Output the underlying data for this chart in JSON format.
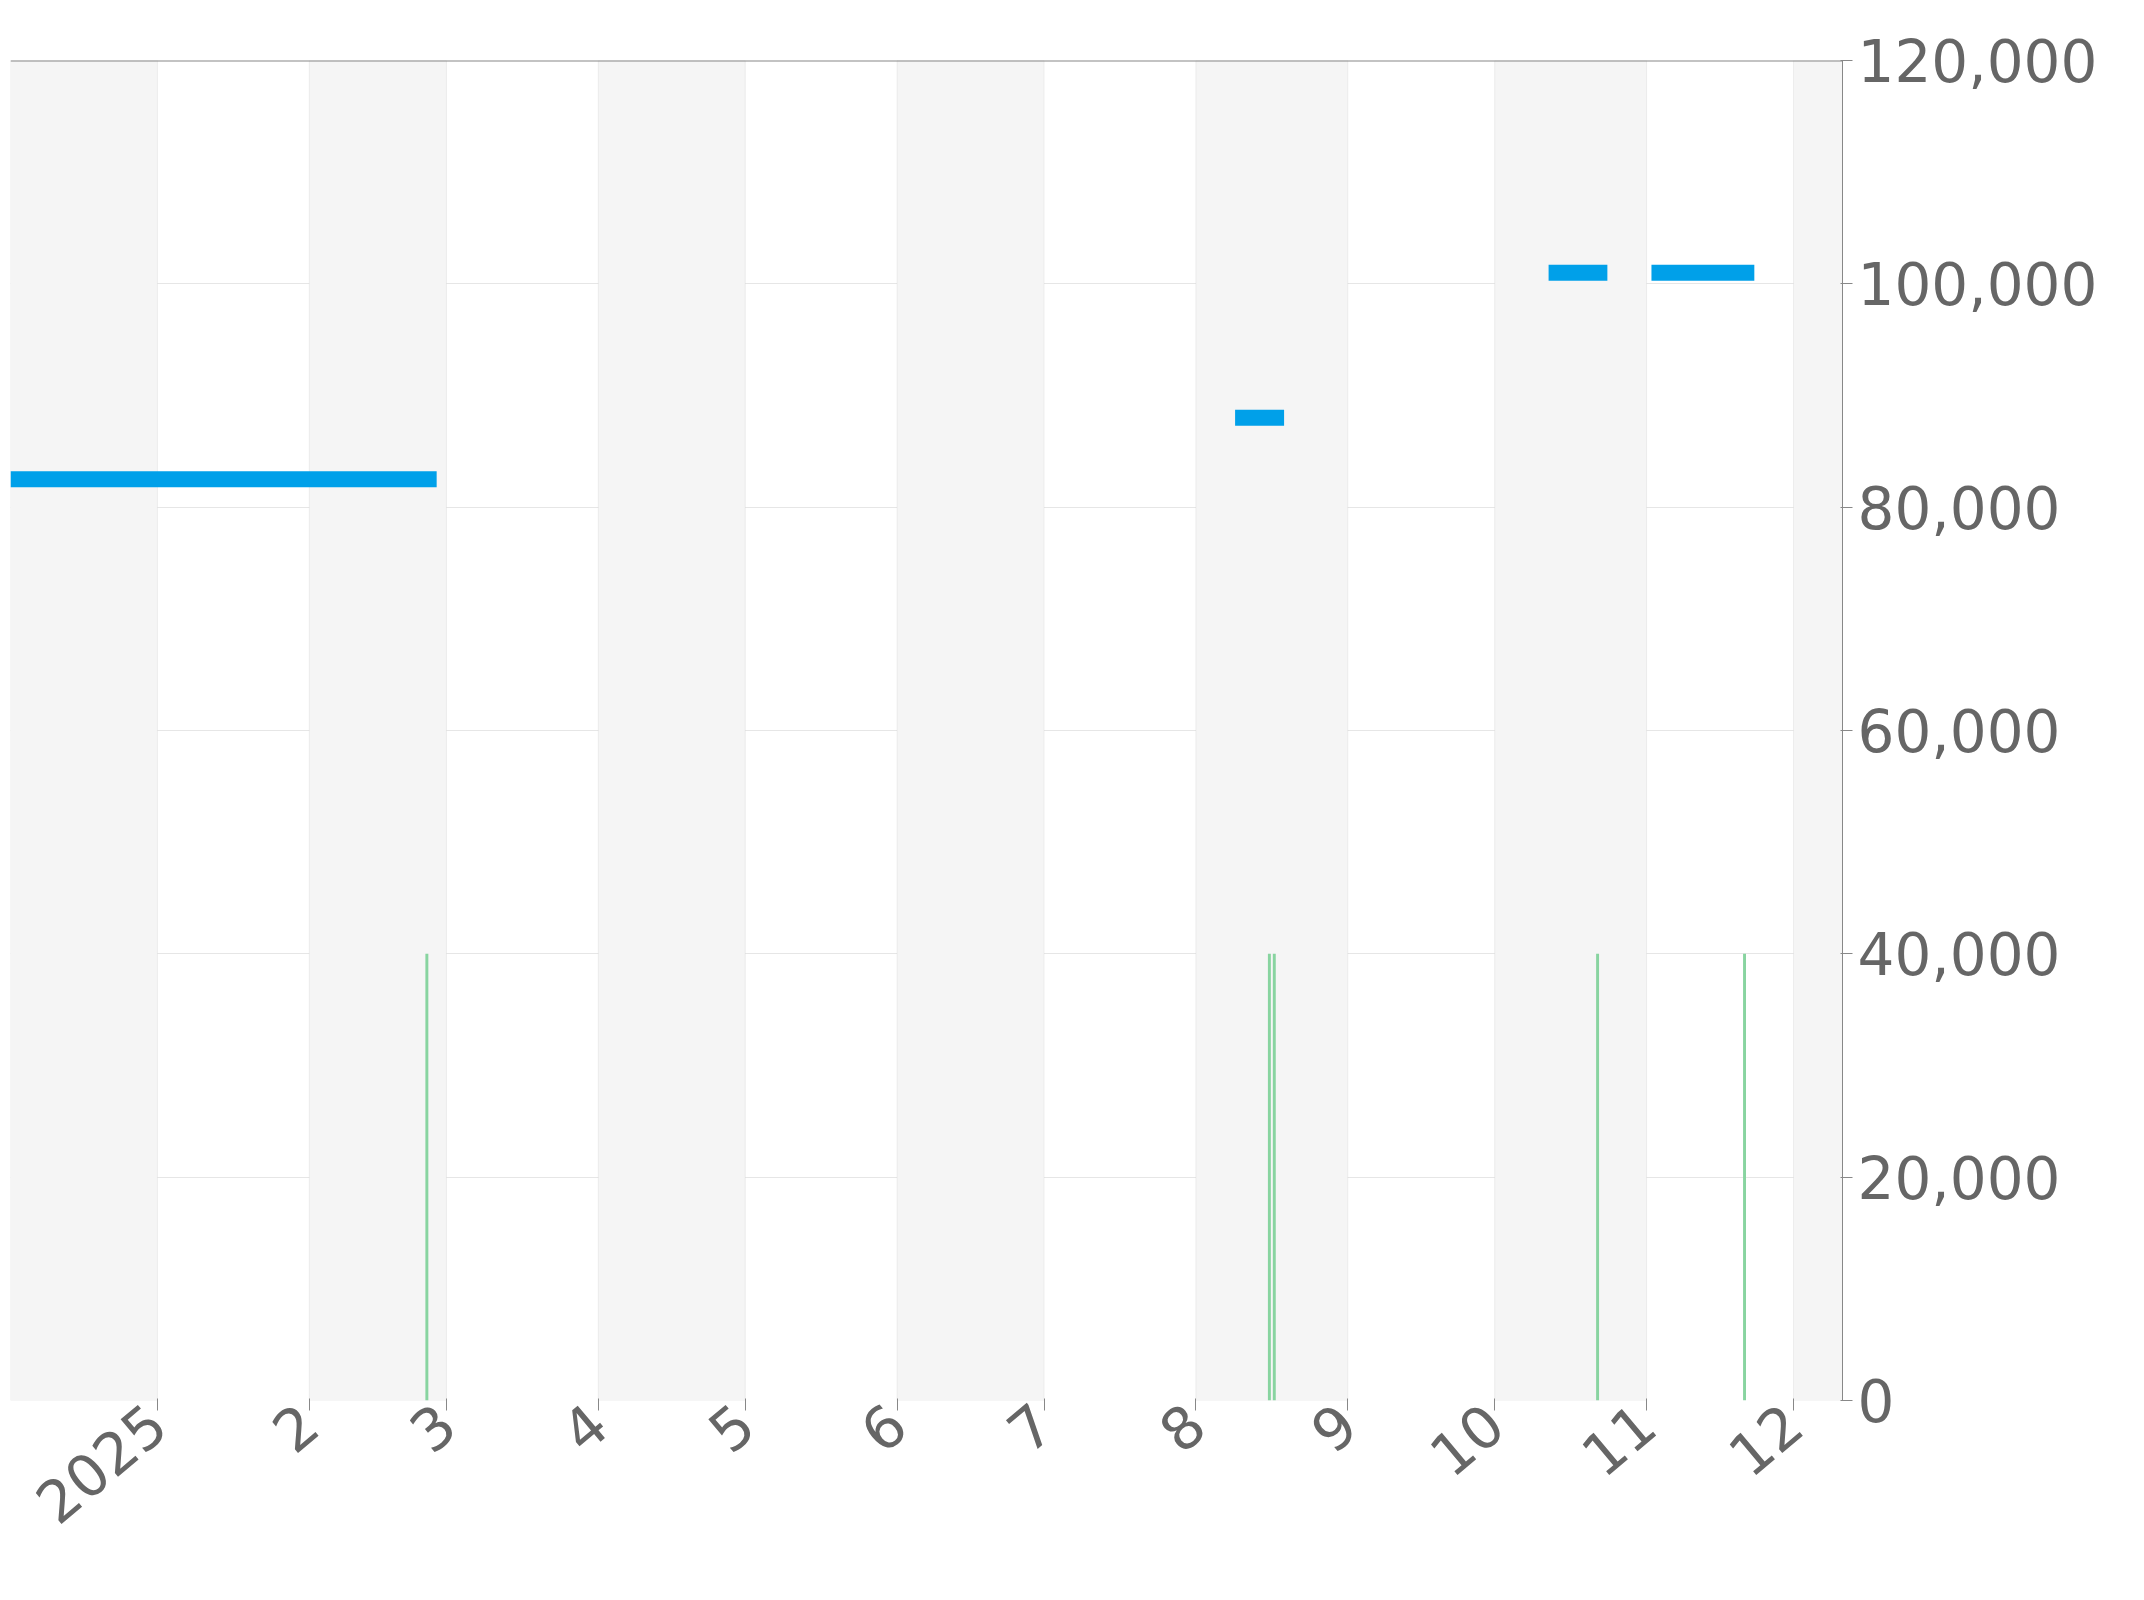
{
  "chart_data": {
    "type": "line",
    "series": [
      {
        "color": "#00a0e9",
        "x": [
          "2024-12-02",
          "2025-02-27",
          "2025-03-01",
          "2025-08-09",
          "2025-08-19",
          "2025-08-20",
          "2025-10-12",
          "2025-10-24",
          "2025-10-25",
          "2025-11-02",
          "2025-11-23"
        ],
        "values": [
          82500,
          82500,
          null,
          88000,
          88000,
          null,
          101000,
          101000,
          null,
          101000,
          101000
        ]
      },
      {
        "type": "bar",
        "color": "#88d4a0",
        "x": [
          "2025-02-25",
          "2025-08-16",
          "2025-08-17",
          "2025-10-22",
          "2025-11-21"
        ],
        "values": [
          40000,
          40000,
          40000,
          40000,
          40000
        ]
      }
    ],
    "xlim": [
      "2024-12-02",
      "2025-12-11"
    ],
    "xticks": [
      {
        "value": "2025-01-01",
        "label": "2025"
      },
      {
        "value": "2025-02-01",
        "label": "2"
      },
      {
        "value": "2025-03-01",
        "label": "3"
      },
      {
        "value": "2025-04-01",
        "label": "4"
      },
      {
        "value": "2025-05-01",
        "label": "5"
      },
      {
        "value": "2025-06-01",
        "label": "6"
      },
      {
        "value": "2025-07-01",
        "label": "7"
      },
      {
        "value": "2025-08-01",
        "label": "8"
      },
      {
        "value": "2025-09-01",
        "label": "9"
      },
      {
        "value": "2025-10-01",
        "label": "10"
      },
      {
        "value": "2025-11-01",
        "label": "11"
      },
      {
        "value": "2025-12-01",
        "label": "12"
      }
    ],
    "ylim": [
      0,
      120000
    ],
    "yticks": [
      0,
      {
        "value": 20000,
        "label": "20,000"
      },
      {
        "value": 40000,
        "label": "40,000"
      },
      {
        "value": 60000,
        "label": "60,000"
      },
      {
        "value": 80000,
        "label": "80,000"
      },
      {
        "value": 100000,
        "label": "100,000"
      },
      {
        "value": 120000,
        "label": "120,000"
      }
    ],
    "grid": "y",
    "bands": [
      {
        "axis": "x",
        "from": "2024-12-02",
        "to": "2025-01-01",
        "color": "#f5f5f5"
      },
      {
        "axis": "x",
        "from": "2025-02-01",
        "to": "2025-03-01",
        "color": "#f5f5f5"
      },
      {
        "axis": "x",
        "from": "2025-04-01",
        "to": "2025-05-01",
        "color": "#f5f5f5"
      },
      {
        "axis": "x",
        "from": "2025-06-01",
        "to": "2025-07-01",
        "color": "#f5f5f5"
      },
      {
        "axis": "x",
        "from": "2025-08-01",
        "to": "2025-09-01",
        "color": "#f5f5f5"
      },
      {
        "axis": "x",
        "from": "2025-10-01",
        "to": "2025-11-01",
        "color": "#f5f5f5"
      },
      {
        "axis": "x",
        "from": "2025-12-01",
        "to": "2025-12-11",
        "color": "#f5f5f5"
      }
    ]
  }
}
